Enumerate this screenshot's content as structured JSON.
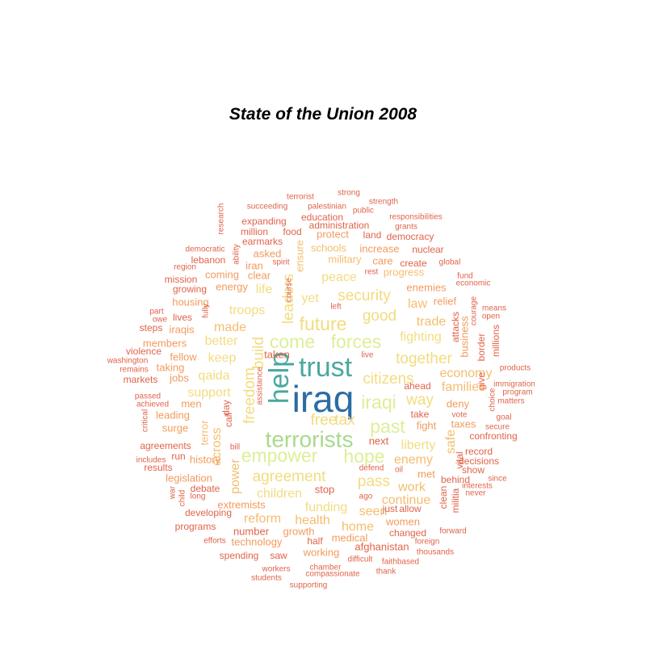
{
  "chart_data": {
    "type": "wordcloud",
    "title": "State of the Union 2008",
    "palette": {
      "darkblue": "#2b6ca3",
      "teal": "#4aa89e",
      "lightgreen": "#a9d98d",
      "yellowgreen": "#dcef98",
      "paleyellow": "#f2dc80",
      "lightorange": "#f5bd6e",
      "orange": "#f29b5c",
      "redorange": "#e0634a"
    },
    "words": [
      {
        "text": "iraq",
        "color": "darkblue",
        "rank": 1
      },
      {
        "text": "help",
        "color": "teal",
        "rank": 2
      },
      {
        "text": "trust",
        "color": "teal",
        "rank": 2
      },
      {
        "text": "terrorists",
        "color": "lightgreen",
        "rank": 3
      },
      {
        "text": "forces",
        "color": "yellowgreen",
        "rank": 4
      },
      {
        "text": "future",
        "color": "paleyellow",
        "rank": 4
      },
      {
        "text": "come",
        "color": "yellowgreen",
        "rank": 4
      },
      {
        "text": "iraqi",
        "color": "yellowgreen",
        "rank": 4
      },
      {
        "text": "empower",
        "color": "yellowgreen",
        "rank": 4
      },
      {
        "text": "past",
        "color": "yellowgreen",
        "rank": 4
      },
      {
        "text": "hope",
        "color": "yellowgreen",
        "rank": 4
      },
      {
        "text": "agreement",
        "color": "paleyellow",
        "rank": 5
      },
      {
        "text": "security",
        "color": "paleyellow",
        "rank": 5
      },
      {
        "text": "good",
        "color": "paleyellow",
        "rank": 5
      },
      {
        "text": "citizens",
        "color": "paleyellow",
        "rank": 5
      },
      {
        "text": "freedom",
        "color": "paleyellow",
        "rank": 5
      },
      {
        "text": "leaders",
        "color": "paleyellow",
        "rank": 5
      },
      {
        "text": "build",
        "color": "paleyellow",
        "rank": 5
      },
      {
        "text": "pass",
        "color": "paleyellow",
        "rank": 5
      },
      {
        "text": "together",
        "color": "paleyellow",
        "rank": 5
      },
      {
        "text": "free",
        "color": "paleyellow",
        "rank": 5
      },
      {
        "text": "tax",
        "color": "paleyellow",
        "rank": 5
      },
      {
        "text": "way",
        "color": "paleyellow",
        "rank": 5
      },
      {
        "text": "peace",
        "color": "paleyellow",
        "rank": 6
      },
      {
        "text": "troops",
        "color": "paleyellow",
        "rank": 6
      },
      {
        "text": "yet",
        "color": "paleyellow",
        "rank": 6
      },
      {
        "text": "fighting",
        "color": "paleyellow",
        "rank": 6
      },
      {
        "text": "better",
        "color": "paleyellow",
        "rank": 6
      },
      {
        "text": "keep",
        "color": "paleyellow",
        "rank": 6
      },
      {
        "text": "qaida",
        "color": "paleyellow",
        "rank": 6
      },
      {
        "text": "support",
        "color": "paleyellow",
        "rank": 6
      },
      {
        "text": "children",
        "color": "paleyellow",
        "rank": 6
      },
      {
        "text": "liberty",
        "color": "paleyellow",
        "rank": 6
      },
      {
        "text": "funding",
        "color": "paleyellow",
        "rank": 6
      },
      {
        "text": "life",
        "color": "paleyellow",
        "rank": 6
      },
      {
        "text": "trade",
        "color": "lightorange",
        "rank": 6
      },
      {
        "text": "made",
        "color": "lightorange",
        "rank": 6
      },
      {
        "text": "law",
        "color": "lightorange",
        "rank": 6
      },
      {
        "text": "enemy",
        "color": "lightorange",
        "rank": 6
      },
      {
        "text": "work",
        "color": "lightorange",
        "rank": 6
      },
      {
        "text": "seen",
        "color": "lightorange",
        "rank": 6
      },
      {
        "text": "continue",
        "color": "lightorange",
        "rank": 6
      },
      {
        "text": "reform",
        "color": "lightorange",
        "rank": 6
      },
      {
        "text": "health",
        "color": "lightorange",
        "rank": 6
      },
      {
        "text": "home",
        "color": "lightorange",
        "rank": 6
      },
      {
        "text": "economy",
        "color": "lightorange",
        "rank": 6
      },
      {
        "text": "families",
        "color": "lightorange",
        "rank": 6
      },
      {
        "text": "safe",
        "color": "lightorange",
        "rank": 6
      },
      {
        "text": "power",
        "color": "lightorange",
        "rank": 6
      },
      {
        "text": "across",
        "color": "lightorange",
        "rank": 6
      },
      {
        "text": "terror",
        "color": "lightorange",
        "rank": 7
      },
      {
        "text": "ensure",
        "color": "lightorange",
        "rank": 7
      },
      {
        "text": "military",
        "color": "lightorange",
        "rank": 7
      },
      {
        "text": "progress",
        "color": "lightorange",
        "rank": 7
      },
      {
        "text": "schools",
        "color": "lightorange",
        "rank": 7
      },
      {
        "text": "increase",
        "color": "orange",
        "rank": 7
      },
      {
        "text": "enemies",
        "color": "orange",
        "rank": 7
      },
      {
        "text": "relief",
        "color": "orange",
        "rank": 7
      },
      {
        "text": "fight",
        "color": "orange",
        "rank": 7
      },
      {
        "text": "taxes",
        "color": "orange",
        "rank": 7
      },
      {
        "text": "deny",
        "color": "orange",
        "rank": 7
      },
      {
        "text": "met",
        "color": "orange",
        "rank": 7
      },
      {
        "text": "women",
        "color": "orange",
        "rank": 7
      },
      {
        "text": "medical",
        "color": "orange",
        "rank": 7
      },
      {
        "text": "growth",
        "color": "orange",
        "rank": 7
      },
      {
        "text": "technology",
        "color": "orange",
        "rank": 7
      },
      {
        "text": "working",
        "color": "orange",
        "rank": 7
      },
      {
        "text": "extremists",
        "color": "orange",
        "rank": 7
      },
      {
        "text": "legislation",
        "color": "orange",
        "rank": 7
      },
      {
        "text": "history",
        "color": "orange",
        "rank": 7
      },
      {
        "text": "men",
        "color": "orange",
        "rank": 7
      },
      {
        "text": "leading",
        "color": "orange",
        "rank": 7
      },
      {
        "text": "surge",
        "color": "orange",
        "rank": 7
      },
      {
        "text": "members",
        "color": "orange",
        "rank": 7
      },
      {
        "text": "fellow",
        "color": "orange",
        "rank": 7
      },
      {
        "text": "taking",
        "color": "orange",
        "rank": 7
      },
      {
        "text": "jobs",
        "color": "orange",
        "rank": 7
      },
      {
        "text": "iraqis",
        "color": "orange",
        "rank": 7
      },
      {
        "text": "housing",
        "color": "orange",
        "rank": 7
      },
      {
        "text": "coming",
        "color": "orange",
        "rank": 7
      },
      {
        "text": "energy",
        "color": "orange",
        "rank": 7
      },
      {
        "text": "clear",
        "color": "orange",
        "rank": 7
      },
      {
        "text": "asked",
        "color": "orange",
        "rank": 7
      },
      {
        "text": "iran",
        "color": "orange",
        "rank": 7
      },
      {
        "text": "care",
        "color": "orange",
        "rank": 7
      },
      {
        "text": "protect",
        "color": "orange",
        "rank": 7
      },
      {
        "text": "business",
        "color": "orange",
        "rank": 7
      },
      {
        "text": "next",
        "color": "redorange",
        "rank": 7
      },
      {
        "text": "stop",
        "color": "redorange",
        "rank": 7
      },
      {
        "text": "number",
        "color": "redorange",
        "rank": 7
      },
      {
        "text": "taken",
        "color": "redorange",
        "rank": 7
      },
      {
        "text": "afghanistan",
        "color": "redorange",
        "rank": 7
      },
      {
        "text": "education",
        "color": "redorange",
        "rank": 8
      },
      {
        "text": "administration",
        "color": "redorange",
        "rank": 8
      },
      {
        "text": "expanding",
        "color": "redorange",
        "rank": 8
      },
      {
        "text": "democracy",
        "color": "redorange",
        "rank": 8
      },
      {
        "text": "nuclear",
        "color": "redorange",
        "rank": 8
      },
      {
        "text": "land",
        "color": "redorange",
        "rank": 8
      },
      {
        "text": "million",
        "color": "redorange",
        "rank": 8
      },
      {
        "text": "food",
        "color": "redorange",
        "rank": 8
      },
      {
        "text": "earmarks",
        "color": "redorange",
        "rank": 8
      },
      {
        "text": "lebanon",
        "color": "redorange",
        "rank": 8
      },
      {
        "text": "mission",
        "color": "redorange",
        "rank": 8
      },
      {
        "text": "growing",
        "color": "redorange",
        "rank": 8
      },
      {
        "text": "create",
        "color": "redorange",
        "rank": 8
      },
      {
        "text": "vital",
        "color": "redorange",
        "rank": 8
      },
      {
        "text": "record",
        "color": "redorange",
        "rank": 8
      },
      {
        "text": "decisions",
        "color": "redorange",
        "rank": 8
      },
      {
        "text": "show",
        "color": "redorange",
        "rank": 8
      },
      {
        "text": "behind",
        "color": "redorange",
        "rank": 8
      },
      {
        "text": "confronting",
        "color": "redorange",
        "rank": 8
      },
      {
        "text": "ahead",
        "color": "redorange",
        "rank": 8
      },
      {
        "text": "take",
        "color": "redorange",
        "rank": 8
      },
      {
        "text": "allow",
        "color": "redorange",
        "rank": 8
      },
      {
        "text": "just",
        "color": "redorange",
        "rank": 8
      },
      {
        "text": "changed",
        "color": "redorange",
        "rank": 8
      },
      {
        "text": "half",
        "color": "redorange",
        "rank": 8
      },
      {
        "text": "saw",
        "color": "redorange",
        "rank": 8
      },
      {
        "text": "spending",
        "color": "redorange",
        "rank": 8
      },
      {
        "text": "programs",
        "color": "redorange",
        "rank": 8
      },
      {
        "text": "developing",
        "color": "redorange",
        "rank": 8
      },
      {
        "text": "debate",
        "color": "redorange",
        "rank": 8
      },
      {
        "text": "results",
        "color": "redorange",
        "rank": 8
      },
      {
        "text": "agreements",
        "color": "redorange",
        "rank": 8
      },
      {
        "text": "call",
        "color": "redorange",
        "rank": 8
      },
      {
        "text": "markets",
        "color": "redorange",
        "rank": 8
      },
      {
        "text": "violence",
        "color": "redorange",
        "rank": 8
      },
      {
        "text": "steps",
        "color": "redorange",
        "rank": 8
      },
      {
        "text": "lives",
        "color": "redorange",
        "rank": 8
      },
      {
        "text": "run",
        "color": "redorange",
        "rank": 8
      },
      {
        "text": "militia",
        "color": "redorange",
        "rank": 8
      },
      {
        "text": "clean",
        "color": "redorange",
        "rank": 8
      },
      {
        "text": "border",
        "color": "redorange",
        "rank": 8
      },
      {
        "text": "attacks",
        "color": "redorange",
        "rank": 8
      },
      {
        "text": "millions",
        "color": "redorange",
        "rank": 8
      },
      {
        "text": "give",
        "color": "redorange",
        "rank": 8
      },
      {
        "text": "day",
        "color": "redorange",
        "rank": 8
      },
      {
        "text": "terrorist",
        "color": "redorange",
        "rank": 9
      },
      {
        "text": "strong",
        "color": "redorange",
        "rank": 9
      },
      {
        "text": "strength",
        "color": "redorange",
        "rank": 9
      },
      {
        "text": "succeeding",
        "color": "redorange",
        "rank": 9
      },
      {
        "text": "palestinian",
        "color": "redorange",
        "rank": 9
      },
      {
        "text": "public",
        "color": "redorange",
        "rank": 9
      },
      {
        "text": "responsibilities",
        "color": "redorange",
        "rank": 9
      },
      {
        "text": "grants",
        "color": "redorange",
        "rank": 9
      },
      {
        "text": "research",
        "color": "redorange",
        "rank": 9
      },
      {
        "text": "democratic",
        "color": "redorange",
        "rank": 9
      },
      {
        "text": "ability",
        "color": "redorange",
        "rank": 9
      },
      {
        "text": "spirit",
        "color": "redorange",
        "rank": 9
      },
      {
        "text": "region",
        "color": "redorange",
        "rank": 9
      },
      {
        "text": "global",
        "color": "redorange",
        "rank": 9
      },
      {
        "text": "rest",
        "color": "redorange",
        "rank": 9
      },
      {
        "text": "fund",
        "color": "redorange",
        "rank": 9
      },
      {
        "text": "economic",
        "color": "redorange",
        "rank": 9
      },
      {
        "text": "course",
        "color": "redorange",
        "rank": 9
      },
      {
        "text": "left",
        "color": "redorange",
        "rank": 9
      },
      {
        "text": "part",
        "color": "redorange",
        "rank": 9
      },
      {
        "text": "owe",
        "color": "redorange",
        "rank": 9
      },
      {
        "text": "fully",
        "color": "redorange",
        "rank": 9
      },
      {
        "text": "means",
        "color": "redorange",
        "rank": 9
      },
      {
        "text": "open",
        "color": "redorange",
        "rank": 9
      },
      {
        "text": "courage",
        "color": "redorange",
        "rank": 9
      },
      {
        "text": "washington",
        "color": "redorange",
        "rank": 9
      },
      {
        "text": "remains",
        "color": "redorange",
        "rank": 9
      },
      {
        "text": "live",
        "color": "redorange",
        "rank": 9
      },
      {
        "text": "products",
        "color": "redorange",
        "rank": 9
      },
      {
        "text": "immigration",
        "color": "redorange",
        "rank": 9
      },
      {
        "text": "program",
        "color": "redorange",
        "rank": 9
      },
      {
        "text": "matters",
        "color": "redorange",
        "rank": 9
      },
      {
        "text": "choice",
        "color": "redorange",
        "rank": 9
      },
      {
        "text": "vote",
        "color": "redorange",
        "rank": 9
      },
      {
        "text": "goal",
        "color": "redorange",
        "rank": 9
      },
      {
        "text": "secure",
        "color": "redorange",
        "rank": 9
      },
      {
        "text": "passed",
        "color": "redorange",
        "rank": 9
      },
      {
        "text": "achieved",
        "color": "redorange",
        "rank": 9
      },
      {
        "text": "critical",
        "color": "redorange",
        "rank": 9
      },
      {
        "text": "assistance",
        "color": "redorange",
        "rank": 9
      },
      {
        "text": "bill",
        "color": "redorange",
        "rank": 9
      },
      {
        "text": "includes",
        "color": "redorange",
        "rank": 9
      },
      {
        "text": "war",
        "color": "redorange",
        "rank": 9
      },
      {
        "text": "child",
        "color": "redorange",
        "rank": 9
      },
      {
        "text": "long",
        "color": "redorange",
        "rank": 9
      },
      {
        "text": "defend",
        "color": "redorange",
        "rank": 9
      },
      {
        "text": "oil",
        "color": "redorange",
        "rank": 9
      },
      {
        "text": "ago",
        "color": "redorange",
        "rank": 9
      },
      {
        "text": "since",
        "color": "redorange",
        "rank": 9
      },
      {
        "text": "interests",
        "color": "redorange",
        "rank": 9
      },
      {
        "text": "never",
        "color": "redorange",
        "rank": 9
      },
      {
        "text": "forward",
        "color": "redorange",
        "rank": 9
      },
      {
        "text": "foreign",
        "color": "redorange",
        "rank": 9
      },
      {
        "text": "thousands",
        "color": "redorange",
        "rank": 9
      },
      {
        "text": "faithbased",
        "color": "redorange",
        "rank": 9
      },
      {
        "text": "thank",
        "color": "redorange",
        "rank": 9
      },
      {
        "text": "difficult",
        "color": "redorange",
        "rank": 9
      },
      {
        "text": "chamber",
        "color": "redorange",
        "rank": 9
      },
      {
        "text": "compassionate",
        "color": "redorange",
        "rank": 9
      },
      {
        "text": "workers",
        "color": "redorange",
        "rank": 9
      },
      {
        "text": "students",
        "color": "redorange",
        "rank": 9
      },
      {
        "text": "supporting",
        "color": "redorange",
        "rank": 9
      },
      {
        "text": "efforts",
        "color": "redorange",
        "rank": 9
      }
    ]
  }
}
